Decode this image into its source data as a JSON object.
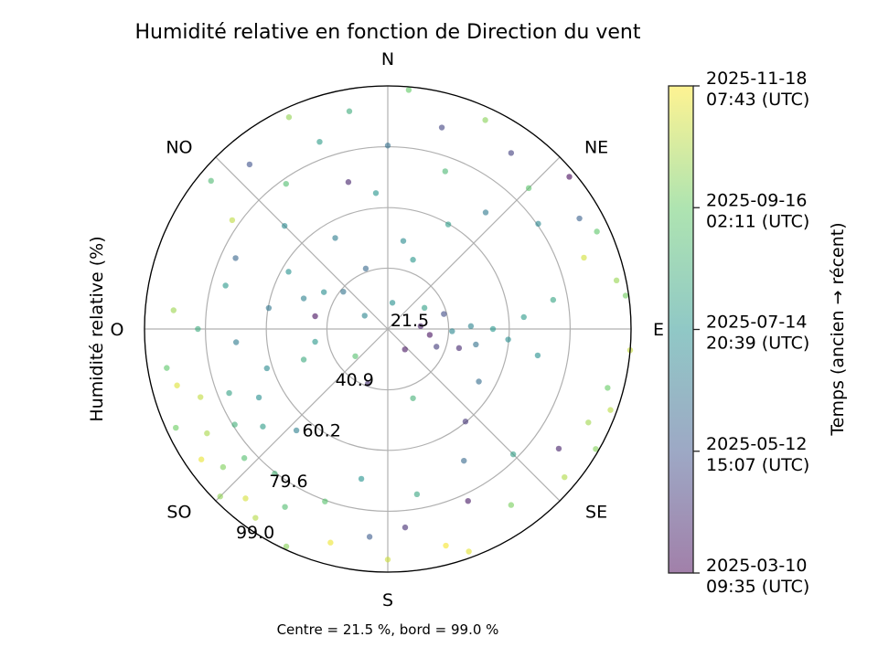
{
  "chart_data": {
    "type": "scatter",
    "projection": "polar",
    "title": "Humidité relative en fonction de Direction du vent",
    "ylabel": "Humidité relative (%)",
    "footnote": "Centre = 21.5 %, bord = 99.0 %",
    "theta_direction": "clockwise",
    "theta_zero": "N",
    "direction_labels": [
      {
        "deg": 0,
        "label": "N"
      },
      {
        "deg": 45,
        "label": "NE"
      },
      {
        "deg": 90,
        "label": "E"
      },
      {
        "deg": 135,
        "label": "SE"
      },
      {
        "deg": 180,
        "label": "S"
      },
      {
        "deg": 225,
        "label": "SO"
      },
      {
        "deg": 270,
        "label": "O"
      },
      {
        "deg": 315,
        "label": "NO"
      }
    ],
    "r_range": [
      21.5,
      99.0
    ],
    "r_ticks": [
      "21.5",
      "40.9",
      "60.2",
      "79.6",
      "99.0"
    ],
    "grid": true,
    "colormap": "viridis",
    "alpha": 0.6,
    "colorbar": {
      "label": "Temps (ancien → récent)",
      "range": [
        "2025-03-10 09:35",
        "2025-11-18 07:43"
      ],
      "ticks": [
        {
          "line1": "2025-11-18",
          "line2": "07:43 (UTC)",
          "date": "2025-11-18T07:43"
        },
        {
          "line1": "2025-09-16",
          "line2": "02:11 (UTC)",
          "date": "2025-09-16T02:11"
        },
        {
          "line1": "2025-07-14",
          "line2": "20:39 (UTC)",
          "date": "2025-07-14T20:39"
        },
        {
          "line1": "2025-05-12",
          "line2": "15:07 (UTC)",
          "date": "2025-05-12T15:07"
        },
        {
          "line1": "2025-03-10",
          "line2": "09:35 (UTC)",
          "date": "2025-03-10T09:35"
        }
      ],
      "position": "right"
    },
    "points_sample_columns": [
      "direction_deg",
      "humidity_pct",
      "date"
    ],
    "points_sample": [
      [
        215,
        95,
        "2025-10-20"
      ],
      [
        220,
        92,
        "2025-11-02"
      ],
      [
        225,
        97,
        "2025-10-05"
      ],
      [
        230,
        90,
        "2025-09-28"
      ],
      [
        235,
        94,
        "2025-11-10"
      ],
      [
        240,
        88,
        "2025-10-15"
      ],
      [
        245,
        96,
        "2025-09-20"
      ],
      [
        250,
        85,
        "2025-10-25"
      ],
      [
        255,
        91,
        "2025-11-05"
      ],
      [
        260,
        93,
        "2025-09-10"
      ],
      [
        210,
        87,
        "2025-08-30"
      ],
      [
        205,
        98,
        "2025-10-01"
      ],
      [
        228,
        83,
        "2025-09-02"
      ],
      [
        238,
        79,
        "2025-08-15"
      ],
      [
        248,
        76,
        "2025-07-30"
      ],
      [
        218,
        80,
        "2025-08-20"
      ],
      [
        232,
        72,
        "2025-07-25"
      ],
      [
        242,
        68,
        "2025-07-10"
      ],
      [
        222,
        65,
        "2025-06-25"
      ],
      [
        252,
        62,
        "2025-07-05"
      ],
      [
        265,
        70,
        "2025-06-20"
      ],
      [
        270,
        82,
        "2025-08-10"
      ],
      [
        275,
        90,
        "2025-10-10"
      ],
      [
        280,
        60,
        "2025-06-15"
      ],
      [
        285,
        75,
        "2025-07-20"
      ],
      [
        195,
        92,
        "2025-11-12"
      ],
      [
        200,
        80,
        "2025-09-05"
      ],
      [
        190,
        70,
        "2025-07-15"
      ],
      [
        185,
        88,
        "2025-05-20"
      ],
      [
        180,
        95,
        "2025-10-30"
      ],
      [
        175,
        85,
        "2025-04-10"
      ],
      [
        170,
        75,
        "2025-08-05"
      ],
      [
        165,
        93,
        "2025-11-15"
      ],
      [
        160,
        97,
        "2025-11-08"
      ],
      [
        155,
        82,
        "2025-03-25"
      ],
      [
        150,
        70,
        "2025-06-01"
      ],
      [
        145,
        90,
        "2025-09-25"
      ],
      [
        140,
        60,
        "2025-04-15"
      ],
      [
        135,
        78,
        "2025-07-28"
      ],
      [
        130,
        95,
        "2025-10-18"
      ],
      [
        125,
        88,
        "2025-03-30"
      ],
      [
        120,
        98,
        "2025-09-30"
      ],
      [
        115,
        92,
        "2025-10-12"
      ],
      [
        110,
        97,
        "2025-10-22"
      ],
      [
        105,
        94,
        "2025-09-18"
      ],
      [
        100,
        70,
        "2025-07-12"
      ],
      [
        95,
        60,
        "2025-07-08"
      ],
      [
        90,
        55,
        "2025-07-18"
      ],
      [
        88,
        48,
        "2025-06-28"
      ],
      [
        92,
        42,
        "2025-07-02"
      ],
      [
        85,
        65,
        "2025-07-22"
      ],
      [
        80,
        75,
        "2025-08-02"
      ],
      [
        78,
        96,
        "2025-10-08"
      ],
      [
        82,
        98,
        "2025-09-22"
      ],
      [
        95,
        99,
        "2025-10-28"
      ],
      [
        100,
        50,
        "2025-06-10"
      ],
      [
        105,
        45,
        "2025-04-05"
      ],
      [
        98,
        35,
        "2025-03-20"
      ],
      [
        85,
        32,
        "2025-03-28"
      ],
      [
        110,
        38,
        "2025-04-20"
      ],
      [
        75,
        40,
        "2025-05-05"
      ],
      [
        120,
        55,
        "2025-06-05"
      ],
      [
        70,
        88,
        "2025-11-01"
      ],
      [
        65,
        95,
        "2025-09-12"
      ],
      [
        60,
        92,
        "2025-05-25"
      ],
      [
        55,
        80,
        "2025-07-01"
      ],
      [
        50,
        97,
        "2025-03-15"
      ],
      [
        45,
        85,
        "2025-09-08"
      ],
      [
        40,
        70,
        "2025-06-18"
      ],
      [
        35,
        90,
        "2025-04-25"
      ],
      [
        30,
        60,
        "2025-07-26"
      ],
      [
        25,
        95,
        "2025-10-02"
      ],
      [
        20,
        75,
        "2025-08-25"
      ],
      [
        15,
        88,
        "2025-04-28"
      ],
      [
        10,
        50,
        "2025-07-06"
      ],
      [
        5,
        98,
        "2025-09-15"
      ],
      [
        0,
        80,
        "2025-06-08"
      ],
      [
        355,
        65,
        "2025-07-16"
      ],
      [
        350,
        92,
        "2025-08-12"
      ],
      [
        345,
        70,
        "2025-04-02"
      ],
      [
        340,
        85,
        "2025-07-24"
      ],
      [
        335,
        96,
        "2025-10-06"
      ],
      [
        330,
        55,
        "2025-06-22"
      ],
      [
        325,
        78,
        "2025-09-01"
      ],
      [
        320,
        90,
        "2025-05-10"
      ],
      [
        315,
        68,
        "2025-07-04"
      ],
      [
        310,
        95,
        "2025-08-28"
      ],
      [
        305,
        82,
        "2025-10-24"
      ],
      [
        300,
        58,
        "2025-07-14"
      ],
      [
        295,
        75,
        "2025-05-30"
      ],
      [
        290,
        50,
        "2025-06-26"
      ],
      [
        300,
        45,
        "2025-07-09"
      ],
      [
        310,
        40,
        "2025-06-12"
      ],
      [
        280,
        45,
        "2025-03-18"
      ],
      [
        260,
        45,
        "2025-07-21"
      ],
      [
        250,
        50,
        "2025-08-08"
      ],
      [
        20,
        45,
        "2025-07-19"
      ],
      [
        340,
        42,
        "2025-06-02"
      ],
      [
        200,
        40,
        "2025-04-12"
      ],
      [
        160,
        45,
        "2025-08-18"
      ],
      [
        60,
        35,
        "2025-07-27"
      ],
      [
        300,
        30,
        "2025-06-30"
      ],
      [
        140,
        30,
        "2025-03-22"
      ],
      [
        230,
        35,
        "2025-09-04"
      ],
      [
        10,
        30,
        "2025-07-11"
      ]
    ]
  }
}
